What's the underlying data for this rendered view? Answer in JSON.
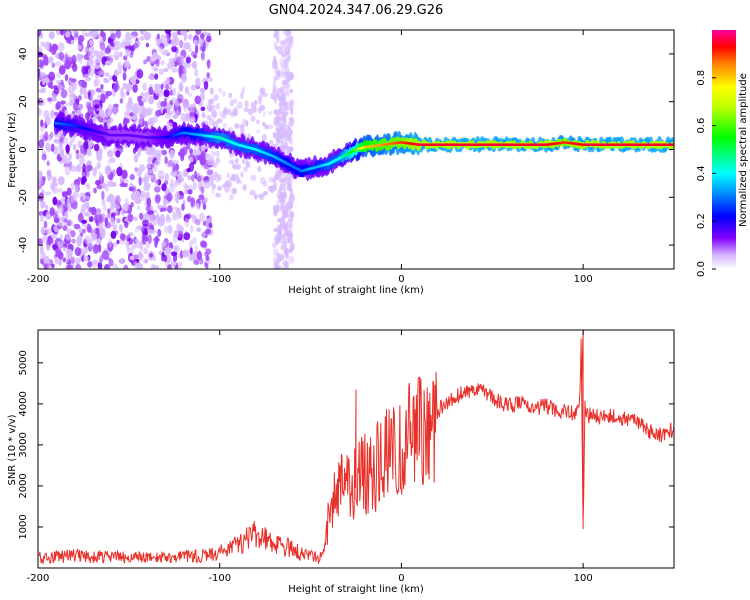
{
  "chart_data": [
    {
      "type": "heatmap",
      "title": "GN04.2024.347.06.29.G26",
      "xlabel": "Height of straight line (km)",
      "ylabel": "Frequency (Hz)",
      "xlim": [
        -200,
        150
      ],
      "ylim": [
        -50,
        50
      ],
      "xticks": [
        -200,
        -100,
        0,
        100
      ],
      "yticks": [
        -40,
        -20,
        0,
        20,
        40
      ],
      "colorbar": {
        "label": "Normalized spectral amplitude",
        "range": [
          0,
          1
        ],
        "ticks": [
          0.0,
          0.2,
          0.4,
          0.6,
          0.8
        ]
      },
      "ridge": {
        "x": [
          -190,
          -180,
          -170,
          -160,
          -150,
          -140,
          -130,
          -120,
          -110,
          -100,
          -90,
          -80,
          -70,
          -60,
          -55,
          -50,
          -45,
          -40,
          -35,
          -30,
          -25,
          -20,
          -10,
          0,
          10,
          20,
          40,
          60,
          80,
          90,
          100,
          120,
          150
        ],
        "freq": [
          11,
          10,
          8,
          6,
          6,
          5,
          5,
          7,
          6,
          5,
          2,
          0,
          -3,
          -7,
          -9,
          -8,
          -7,
          -6,
          -4,
          -2,
          0,
          1,
          2,
          3,
          2,
          2,
          2,
          2,
          2,
          3,
          2,
          2,
          2
        ],
        "amplitude": [
          0.3,
          0.25,
          0.2,
          0.15,
          0.15,
          0.15,
          0.2,
          0.3,
          0.35,
          0.45,
          0.4,
          0.4,
          0.35,
          0.3,
          0.3,
          0.35,
          0.35,
          0.4,
          0.4,
          0.5,
          0.6,
          0.8,
          0.85,
          0.9,
          0.95,
          0.95,
          0.95,
          0.95,
          0.95,
          0.9,
          0.95,
          0.95,
          0.95
        ]
      }
    },
    {
      "type": "line",
      "xlabel": "Height of straight line (km)",
      "ylabel": "SNR (10 * v/v)",
      "xlim": [
        -200,
        150
      ],
      "ylim": [
        0,
        5800
      ],
      "xticks": [
        -200,
        -100,
        0,
        100
      ],
      "yticks": [
        1000,
        2000,
        3000,
        4000,
        5000
      ],
      "color": "#e8302a",
      "series": [
        {
          "name": "SNR",
          "x": [
            -200,
            -190,
            -180,
            -170,
            -160,
            -150,
            -140,
            -130,
            -120,
            -110,
            -100,
            -95,
            -90,
            -85,
            -80,
            -75,
            -70,
            -65,
            -60,
            -55,
            -50,
            -45,
            -42,
            -40,
            -38,
            -35,
            -32,
            -30,
            -28,
            -25,
            -22,
            -20,
            -18,
            -15,
            -12,
            -10,
            -8,
            -5,
            -2,
            0,
            5,
            10,
            15,
            20,
            25,
            30,
            35,
            40,
            45,
            50,
            55,
            60,
            65,
            70,
            75,
            80,
            85,
            90,
            95,
            98,
            99,
            100,
            101,
            102,
            105,
            110,
            115,
            120,
            125,
            130,
            135,
            140,
            145,
            150
          ],
          "values": [
            250,
            280,
            300,
            280,
            270,
            260,
            250,
            250,
            280,
            300,
            380,
            450,
            550,
            700,
            850,
            700,
            600,
            550,
            450,
            350,
            280,
            280,
            500,
            1300,
            1700,
            1800,
            2000,
            2000,
            1900,
            2100,
            2200,
            2300,
            2200,
            2400,
            2500,
            2600,
            2700,
            2800,
            2900,
            3000,
            3200,
            3450,
            3600,
            3800,
            4050,
            4200,
            4300,
            4350,
            4300,
            4150,
            4000,
            3950,
            4000,
            4000,
            3900,
            3950,
            3850,
            3800,
            3750,
            3800,
            5800,
            1000,
            3900,
            3700,
            3750,
            3650,
            3700,
            3650,
            3600,
            3550,
            3400,
            3200,
            3250,
            3400
          ]
        }
      ],
      "spikes": [
        {
          "x": -25,
          "peak": 4350
        },
        {
          "x": 10,
          "peak": 4650
        },
        {
          "x": 100,
          "peak": 5800
        },
        {
          "x": 100,
          "trough": 950
        }
      ]
    }
  ]
}
